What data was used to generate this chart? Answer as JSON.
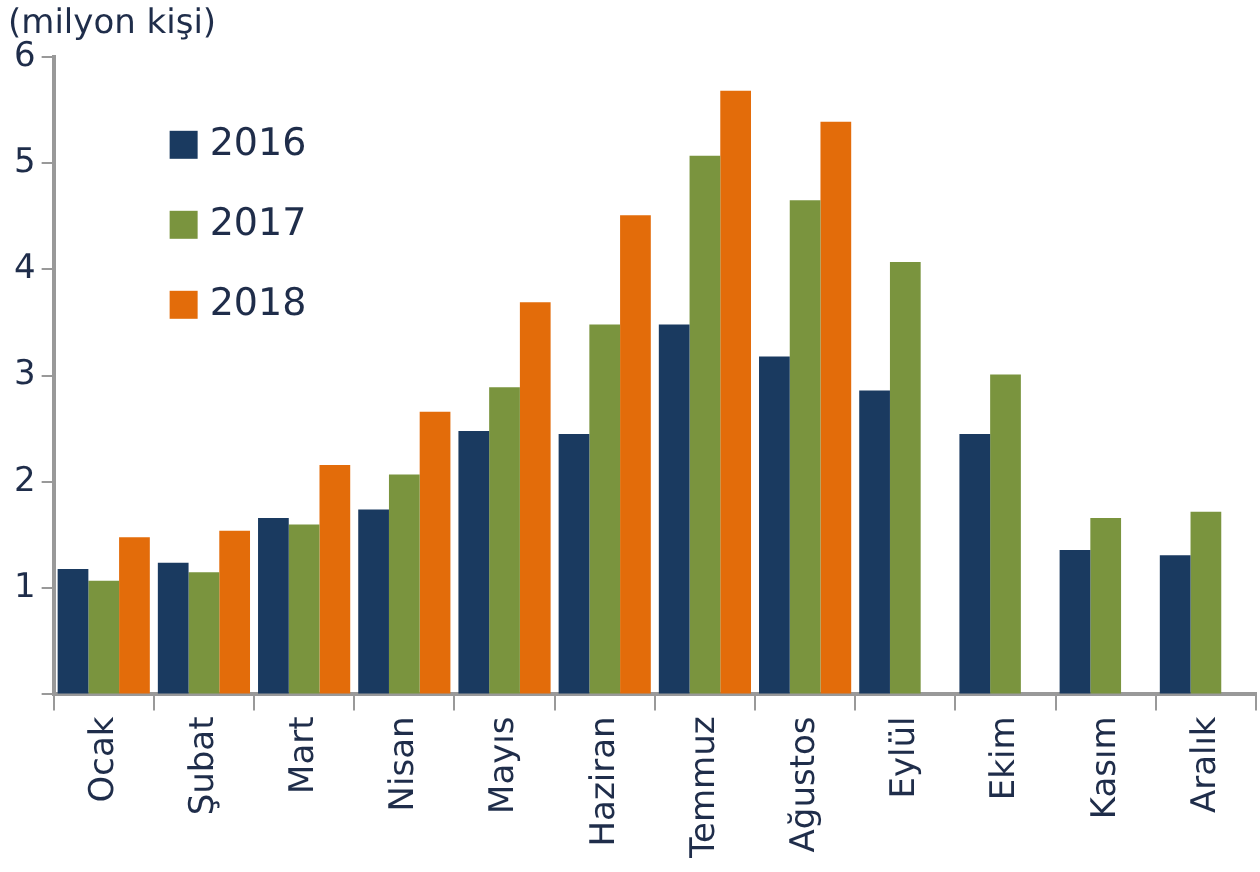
{
  "chart_data": {
    "type": "bar",
    "title": "(milyon kişi)",
    "categories": [
      "Ocak",
      "Şubat",
      "Mart",
      "Nisan",
      "Mayıs",
      "Haziran",
      "Temmuz",
      "Ağustos",
      "Eylül",
      "Ekim",
      "Kasım",
      "Aralık"
    ],
    "series": [
      {
        "name": "2016",
        "color": "#1a3a60",
        "values": [
          1.18,
          1.24,
          1.66,
          1.74,
          2.48,
          2.45,
          3.48,
          3.18,
          2.86,
          2.45,
          1.36,
          1.31
        ]
      },
      {
        "name": "2017",
        "color": "#7a943e",
        "values": [
          1.07,
          1.15,
          1.6,
          2.07,
          2.89,
          3.48,
          5.07,
          4.65,
          4.07,
          3.01,
          1.66,
          1.72
        ]
      },
      {
        "name": "2018",
        "color": "#e36c0a",
        "values": [
          1.48,
          1.54,
          2.16,
          2.66,
          3.69,
          4.51,
          5.68,
          5.39,
          null,
          null,
          null,
          null
        ]
      }
    ],
    "ylim": [
      0,
      6
    ],
    "yticks": [
      {
        "value": 0,
        "label": null
      },
      1,
      2,
      3,
      4,
      5,
      6
    ],
    "grid": false,
    "legend": "top left"
  }
}
